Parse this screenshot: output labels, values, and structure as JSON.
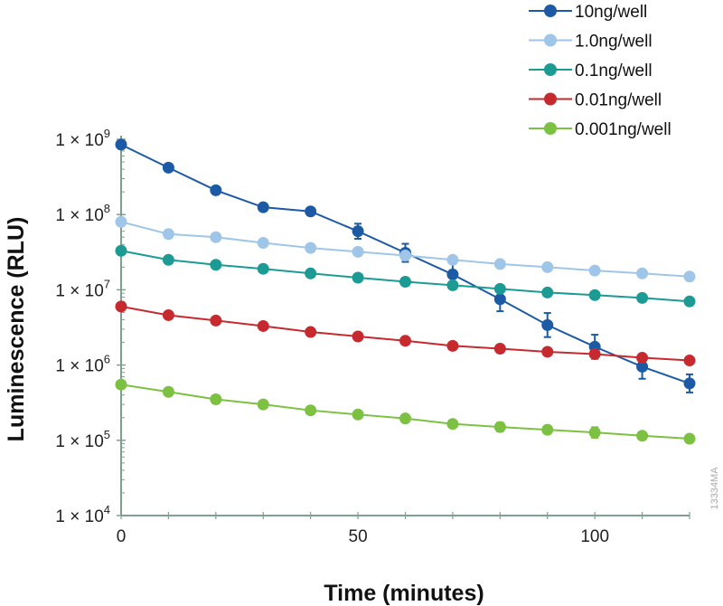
{
  "figure_id": "13334MA",
  "chart_data": {
    "type": "line",
    "xlabel": "Time (minutes)",
    "ylabel": "Luminescence (RLU)",
    "xlim": [
      0,
      120
    ],
    "ylim": [
      10000,
      1000000000
    ],
    "y_scale": "log",
    "x_ticks": [
      0,
      50,
      100
    ],
    "x_tick_labels": [
      "0",
      "50",
      "100"
    ],
    "y_ticks": [
      1000000000,
      100000000,
      10000000,
      1000000,
      100000,
      10000
    ],
    "y_tick_labels": [
      {
        "mantissa": "1 × 10",
        "exp": "9"
      },
      {
        "mantissa": "1 × 10",
        "exp": "8"
      },
      {
        "mantissa": "1 × 10",
        "exp": "7"
      },
      {
        "mantissa": "1 × 10",
        "exp": "6"
      },
      {
        "mantissa": "1 × 10",
        "exp": "5"
      },
      {
        "mantissa": "1 × 10",
        "exp": "4"
      }
    ],
    "grid": false,
    "legend_position": "top-right",
    "x": [
      0,
      10,
      20,
      30,
      40,
      50,
      60,
      70,
      80,
      90,
      100,
      110,
      120
    ],
    "series": [
      {
        "name": "10ng/well",
        "color": "#1d5aa6",
        "values": [
          850000000,
          420000000,
          210000000,
          125000000,
          110000000,
          60000000,
          31000000,
          16000000,
          7500000,
          3400000,
          1750000,
          950000,
          570000
        ],
        "error": [
          0,
          0,
          0,
          0,
          0,
          0.1,
          0.12,
          0.15,
          0.16,
          0.16,
          0.16,
          0.16,
          0.12
        ]
      },
      {
        "name": "1.0ng/well",
        "color": "#9fc6e8",
        "values": [
          80000000,
          55000000,
          50000000,
          42000000,
          36000000,
          32000000,
          28500000,
          25000000,
          22000000,
          20000000,
          18000000,
          16500000,
          15000000
        ],
        "error": [
          0,
          0,
          0,
          0,
          0,
          0,
          0,
          0,
          0,
          0,
          0,
          0,
          0
        ]
      },
      {
        "name": "0.1ng/well",
        "color": "#1b9b94",
        "values": [
          33000000,
          25000000,
          21500000,
          19000000,
          16500000,
          14500000,
          12800000,
          11500000,
          10300000,
          9200000,
          8500000,
          7800000,
          7000000
        ],
        "error": [
          0,
          0,
          0,
          0,
          0,
          0,
          0,
          0.04,
          0,
          0,
          0,
          0,
          0
        ]
      },
      {
        "name": "0.01ng/well",
        "color": "#c62a2f",
        "values": [
          6000000,
          4600000,
          3900000,
          3300000,
          2750000,
          2400000,
          2100000,
          1800000,
          1650000,
          1500000,
          1400000,
          1250000,
          1150000
        ],
        "error": [
          0,
          0,
          0.05,
          0,
          0,
          0,
          0,
          0.04,
          0,
          0,
          0,
          0,
          0
        ]
      },
      {
        "name": "0.001ng/well",
        "color": "#7cc142",
        "values": [
          550000,
          440000,
          350000,
          300000,
          250000,
          220000,
          195000,
          165000,
          150000,
          138000,
          127000,
          115000,
          105000
        ],
        "error": [
          0,
          0,
          0.05,
          0.04,
          0.05,
          0.05,
          0.04,
          0.04,
          0.06,
          0.05,
          0.07,
          0.04,
          0.04
        ]
      }
    ]
  }
}
